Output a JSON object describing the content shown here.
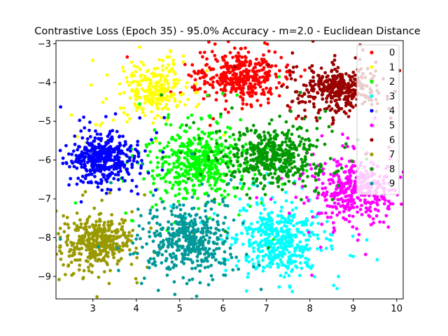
{
  "chart_data": {
    "type": "scatter",
    "title": "Contrastive Loss (Epoch 35) - 95.0% Accuracy - m=2.0 - Euclidean Distance",
    "xlabel": "",
    "ylabel": "",
    "xlim": [
      2.15,
      10.15
    ],
    "ylim": [
      -9.58,
      -2.92
    ],
    "xticks": [
      3,
      4,
      5,
      6,
      7,
      8,
      9,
      10
    ],
    "yticks": [
      -3,
      -4,
      -5,
      -6,
      -7,
      -8,
      -9
    ],
    "grid": false,
    "legend_position": "top-right",
    "series": [
      {
        "name": "0",
        "color": "#ff0000",
        "center": [
          6.4,
          -3.85
        ],
        "spread": [
          0.45,
          0.3
        ],
        "n": 420
      },
      {
        "name": "1",
        "color": "#ffff00",
        "center": [
          4.35,
          -4.2
        ],
        "spread": [
          0.35,
          0.35
        ],
        "n": 260
      },
      {
        "name": "2",
        "color": "#00ff00",
        "center": [
          5.4,
          -6.05
        ],
        "spread": [
          0.5,
          0.45
        ],
        "n": 480
      },
      {
        "name": "3",
        "color": "#00ffff",
        "center": [
          7.3,
          -8.05
        ],
        "spread": [
          0.45,
          0.4
        ],
        "n": 480
      },
      {
        "name": "4",
        "color": "#0000ff",
        "center": [
          3.2,
          -5.95
        ],
        "spread": [
          0.35,
          0.3
        ],
        "n": 440
      },
      {
        "name": "5",
        "color": "#ff00ff",
        "center": [
          9.0,
          -6.8
        ],
        "spread": [
          0.45,
          0.4
        ],
        "n": 420
      },
      {
        "name": "6",
        "color": "#990000",
        "center": [
          8.65,
          -4.15
        ],
        "spread": [
          0.45,
          0.25
        ],
        "n": 380
      },
      {
        "name": "7",
        "color": "#999900",
        "center": [
          3.05,
          -8.1
        ],
        "spread": [
          0.35,
          0.3
        ],
        "n": 420
      },
      {
        "name": "8",
        "color": "#009900",
        "center": [
          7.2,
          -5.9
        ],
        "spread": [
          0.5,
          0.35
        ],
        "n": 480
      },
      {
        "name": "9",
        "color": "#009999",
        "center": [
          5.2,
          -8.05
        ],
        "spread": [
          0.45,
          0.4
        ],
        "n": 460
      }
    ]
  }
}
